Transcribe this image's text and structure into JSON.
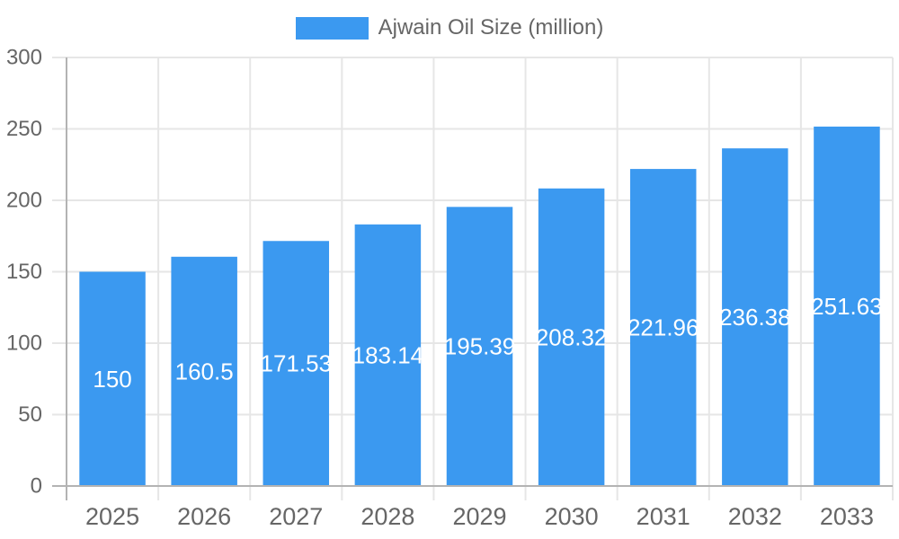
{
  "legend": {
    "label": "Ajwain Oil Size (million)"
  },
  "chart_data": {
    "type": "bar",
    "title": "",
    "xlabel": "",
    "ylabel": "",
    "categories": [
      "2025",
      "2026",
      "2027",
      "2028",
      "2029",
      "2030",
      "2031",
      "2032",
      "2033"
    ],
    "series": [
      {
        "name": "Ajwain Oil Size (million)",
        "values": [
          150,
          160.5,
          171.53,
          183.14,
          195.39,
          208.32,
          221.96,
          236.38,
          251.63
        ],
        "value_labels": [
          "150",
          "160.5",
          "171.53",
          "183.14",
          "195.39",
          "208.32",
          "221.96",
          "236.38",
          "251.63"
        ]
      }
    ],
    "ylim": [
      0,
      300
    ],
    "yticks": [
      0,
      50,
      100,
      150,
      200,
      250,
      300
    ],
    "grid": true,
    "legend_position": "top",
    "colors": {
      "bar": "#3b99f0",
      "value_label_text": "#ffffff",
      "axis_text": "#666666",
      "gridline": "#e6e6e6",
      "axis_line": "#b3b3b3",
      "background": "#ffffff"
    }
  }
}
